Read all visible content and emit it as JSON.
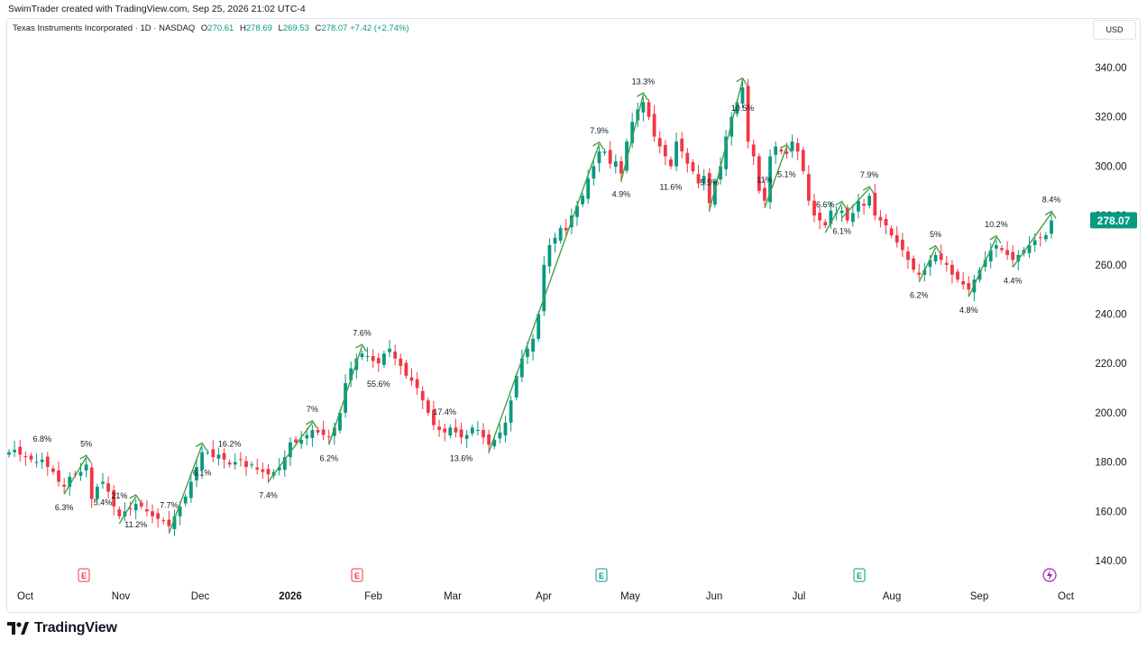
{
  "header": {
    "attribution": "SwimTrader created with TradingView.com, Sep 25, 2026 21:02 UTC-4"
  },
  "legend": {
    "symbol": "Texas Instruments Incorporated · 1D · NASDAQ",
    "open_label": "O",
    "open": "270.61",
    "high_label": "H",
    "high": "278.69",
    "low_label": "L",
    "low": "269.53",
    "close_label": "C",
    "close": "278.07",
    "change": "+7.42 (+2.74%)"
  },
  "currency": "USD",
  "last_price": "278.07",
  "brand": "TradingView",
  "colors": {
    "up": "#089981",
    "down": "#f23645",
    "arrow": "#43a047",
    "earnings_past": "#f23645",
    "earnings_future": "#089981",
    "dividend": "#9c27b0"
  },
  "chart_data": {
    "type": "candlestick",
    "title": "Texas Instruments Incorporated · 1D · NASDAQ",
    "ylim": [
      130,
      350
    ],
    "y_ticks": [
      "140.00",
      "160.00",
      "180.00",
      "200.00",
      "220.00",
      "240.00",
      "260.00",
      "280.00",
      "300.00",
      "320.00",
      "340.00"
    ],
    "x_labels": [
      "Oct",
      "Nov",
      "Dec",
      "2026",
      "Feb",
      "Mar",
      "Apr",
      "May",
      "Jun",
      "Jul",
      "Aug",
      "Sep",
      "Oct"
    ],
    "grid": false,
    "closes": [
      184,
      185,
      183,
      182,
      181,
      180,
      181,
      178,
      176,
      172,
      170,
      174,
      175,
      176,
      179,
      165,
      170,
      172,
      168,
      162,
      158,
      160,
      161,
      163,
      162,
      160,
      158,
      157,
      156,
      154,
      158,
      162,
      166,
      172,
      178,
      184,
      184,
      182,
      183,
      181,
      179,
      180,
      181,
      178,
      179,
      177,
      176,
      175,
      176,
      178,
      182,
      188,
      188,
      189,
      191,
      193,
      192,
      191,
      190,
      194,
      200,
      212,
      218,
      222,
      224,
      223,
      221,
      220,
      224,
      226,
      222,
      219,
      215,
      213,
      210,
      205,
      200,
      195,
      193,
      192,
      194,
      192,
      190,
      191,
      194,
      193,
      190,
      187,
      189,
      192,
      196,
      205,
      215,
      222,
      226,
      230,
      240,
      260,
      268,
      271,
      275,
      274,
      280,
      284,
      288,
      295,
      300,
      306,
      306,
      301,
      302,
      297,
      310,
      318,
      323,
      326,
      320,
      312,
      308,
      304,
      300,
      310,
      306,
      301,
      298,
      293,
      296,
      285,
      294,
      300,
      312,
      320,
      326,
      332,
      310,
      304,
      290,
      286,
      304,
      308,
      306,
      305,
      310,
      306,
      298,
      286,
      280,
      278,
      276,
      282,
      281,
      282,
      278,
      281,
      286,
      284,
      288,
      280,
      278,
      276,
      272,
      269,
      266,
      262,
      258,
      256,
      258,
      262,
      264,
      262,
      260,
      256,
      254,
      252,
      250,
      254,
      258,
      262,
      266,
      268,
      266,
      264,
      262,
      264,
      266,
      268,
      270,
      271,
      272,
      278
    ],
    "swing_percent_labels": [
      "6.8%",
      "6.3%",
      "5%",
      "5.4%",
      "21%",
      "11.2%",
      "7.7%",
      "6.1%",
      "16.2%",
      "7.4%",
      "7%",
      "6.2%",
      "7.6%",
      "55.6%",
      "17.4%",
      "13.6%",
      "7.9%",
      "4.9%",
      "13.3%",
      "11.6%",
      "5.5%",
      "10.5%",
      "11%",
      "5.1%",
      "6.6%",
      "6.1%",
      "7.9%",
      "6.2%",
      "5%",
      "4.8%",
      "10.2%",
      "4.4%",
      "8.4%"
    ]
  }
}
